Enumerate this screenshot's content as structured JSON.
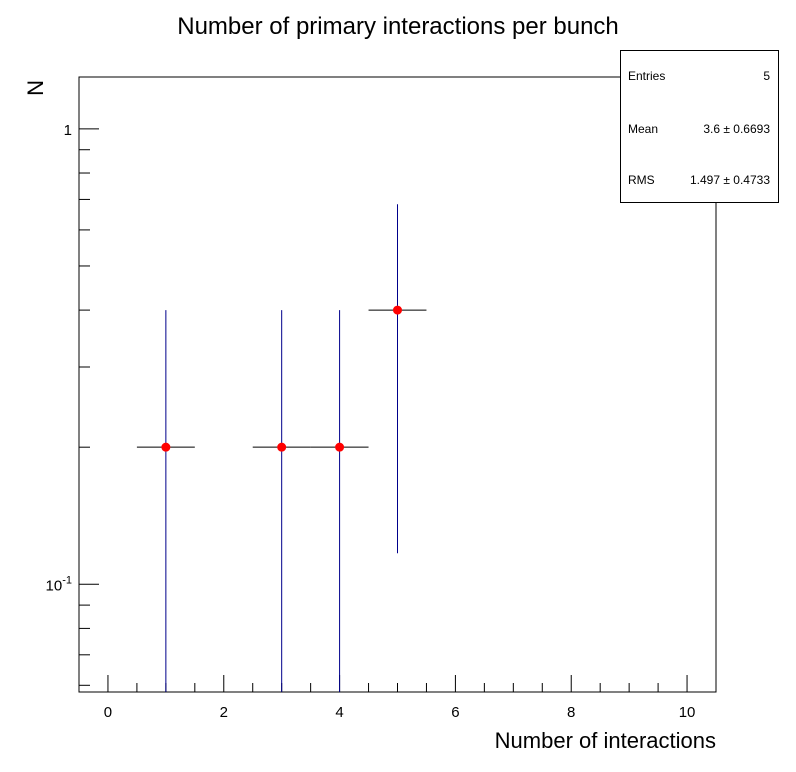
{
  "chart_data": {
    "type": "scatter",
    "title": "Number of primary interactions per bunch",
    "xlabel": "Number of interactions",
    "ylabel": "N",
    "x_ticks": [
      0,
      2,
      4,
      6,
      8,
      10
    ],
    "y_scale": "log",
    "xlim": [
      -0.5,
      10.5
    ],
    "ylim": [
      0.058,
      1.3
    ],
    "y_ticks": [
      {
        "value": 0.1,
        "base": "10",
        "exp": "-1"
      },
      {
        "value": 1,
        "label": "1"
      }
    ],
    "points": [
      {
        "x": 1,
        "y": 0.2,
        "xerr": 0.5,
        "ylow": 0.0,
        "yhigh": 0.4
      },
      {
        "x": 3,
        "y": 0.2,
        "xerr": 0.5,
        "ylow": 0.0,
        "yhigh": 0.4
      },
      {
        "x": 4,
        "y": 0.2,
        "xerr": 0.5,
        "ylow": 0.0,
        "yhigh": 0.4
      },
      {
        "x": 5,
        "y": 0.4,
        "xerr": 0.5,
        "ylow": 0.117,
        "yhigh": 0.683
      }
    ],
    "colors": {
      "marker": "#ff0000",
      "error_bar": "#00008b",
      "axis": "#000000"
    },
    "grid": false
  },
  "stats": {
    "entries_label": "Entries",
    "entries_value": "5",
    "mean_label": "Mean",
    "mean_value": "3.6 ± 0.6693",
    "rms_label": "RMS",
    "rms_value": "1.497 ± 0.4733"
  }
}
